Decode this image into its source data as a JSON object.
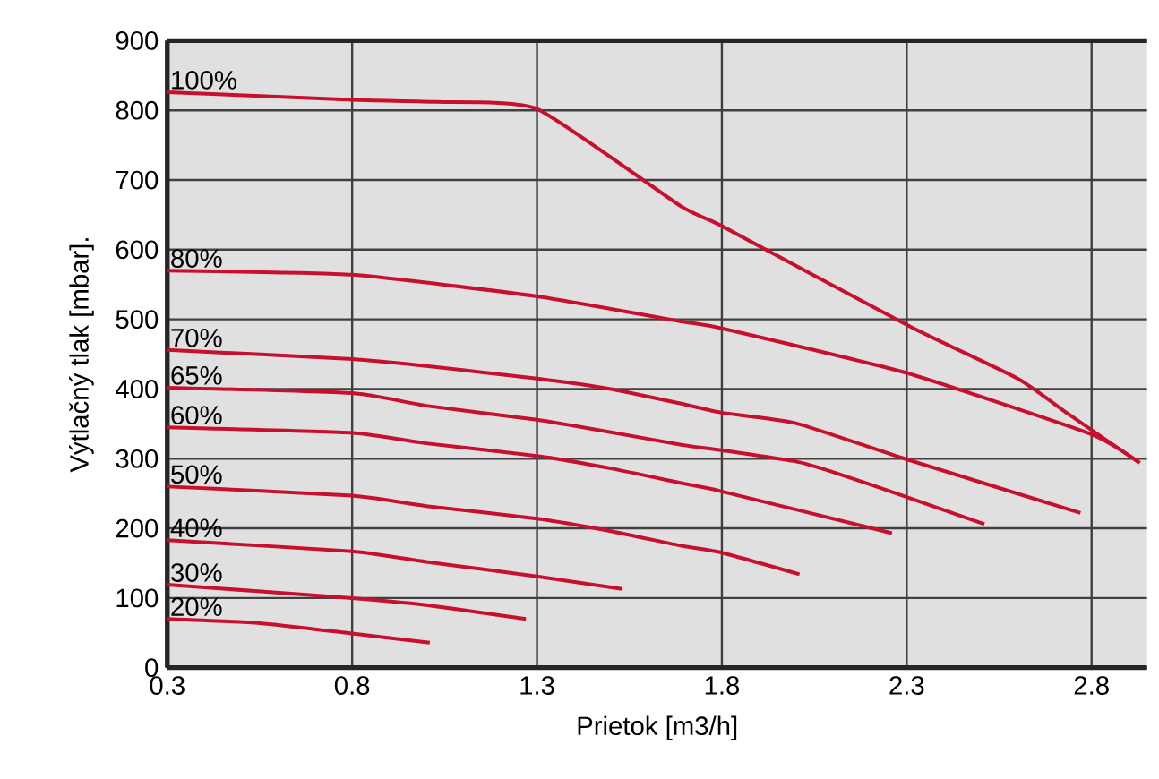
{
  "chart_data": {
    "type": "line",
    "xlabel": "Prietok [m3/h]",
    "ylabel": "Výtlačný tlak [mbar].",
    "xlim": [
      0.3,
      2.95
    ],
    "ylim": [
      0,
      900
    ],
    "xticks": [
      0.3,
      0.8,
      1.3,
      1.8,
      2.3,
      2.8
    ],
    "yticks": [
      0,
      100,
      200,
      300,
      400,
      500,
      600,
      700,
      800,
      900
    ],
    "grid": true,
    "legend": false,
    "marker": "none",
    "line_style": "solid",
    "series": [
      {
        "name": "100%",
        "color": "#c8102e",
        "x": [
          0.3,
          0.8,
          1.03,
          1.3,
          1.69,
          1.8,
          2.3,
          2.6,
          2.74,
          2.93
        ],
        "values": [
          826,
          815,
          812,
          802,
          662,
          634,
          492,
          415,
          363,
          294
        ]
      },
      {
        "name": "80%",
        "color": "#c8102e",
        "x": [
          0.3,
          0.8,
          1.3,
          1.69,
          1.8,
          2.3,
          2.8,
          2.93
        ],
        "values": [
          570,
          564,
          533,
          497,
          487,
          423,
          335,
          294
        ]
      },
      {
        "name": "70%",
        "color": "#c8102e",
        "x": [
          0.3,
          0.8,
          1.0,
          1.3,
          1.5,
          1.69,
          1.8,
          2.0,
          2.3,
          2.77
        ],
        "values": [
          456,
          443,
          433,
          415,
          400,
          379,
          366,
          351,
          299,
          222
        ]
      },
      {
        "name": "65%",
        "color": "#c8102e",
        "x": [
          0.3,
          0.8,
          1.0,
          1.3,
          1.5,
          1.69,
          1.8,
          2.0,
          2.1,
          2.3,
          2.51
        ],
        "values": [
          402,
          394,
          376,
          356,
          338,
          320,
          312,
          296,
          281,
          245,
          206
        ]
      },
      {
        "name": "60%",
        "color": "#c8102e",
        "x": [
          0.3,
          0.8,
          1.0,
          1.3,
          1.5,
          1.69,
          1.8,
          2.26
        ],
        "values": [
          345,
          337,
          322,
          304,
          286,
          265,
          253,
          193
        ]
      },
      {
        "name": "50%",
        "color": "#c8102e",
        "x": [
          0.3,
          0.8,
          1.0,
          1.3,
          1.5,
          1.69,
          1.8,
          2.01
        ],
        "values": [
          260,
          247,
          232,
          214,
          196,
          175,
          165,
          134
        ]
      },
      {
        "name": "40%",
        "color": "#c8102e",
        "x": [
          0.3,
          0.8,
          1.0,
          1.3,
          1.53
        ],
        "values": [
          183,
          167,
          152,
          131,
          113
        ]
      },
      {
        "name": "30%",
        "color": "#c8102e",
        "x": [
          0.3,
          0.8,
          1.0,
          1.27
        ],
        "values": [
          119,
          100,
          90,
          70
        ]
      },
      {
        "name": "20%",
        "color": "#c8102e",
        "x": [
          0.3,
          0.55,
          0.8,
          1.01
        ],
        "values": [
          70,
          64,
          49,
          36
        ]
      }
    ]
  }
}
